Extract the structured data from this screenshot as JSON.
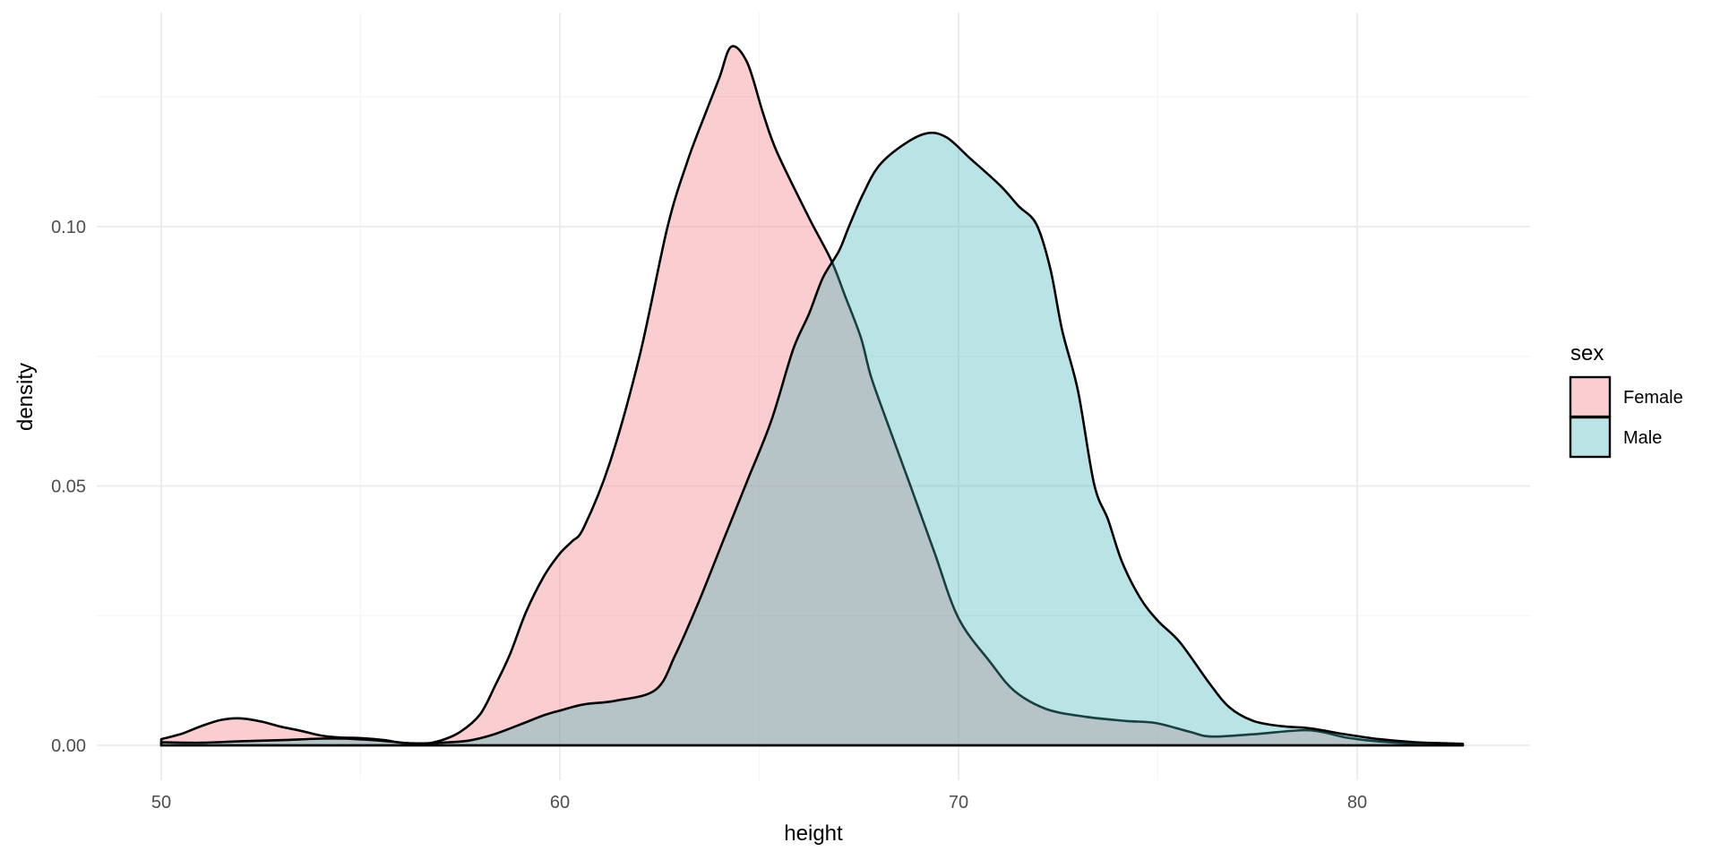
{
  "chart_data": {
    "type": "area",
    "subtype": "density",
    "title": "",
    "xlabel": "height",
    "ylabel": "density",
    "legend_title": "sex",
    "legend_position": "right",
    "grid": true,
    "background": "#ffffff",
    "gridline_major_color": "#ebebeb",
    "gridline_minor_color": "#f5f5f5",
    "outline_color": "#000000",
    "x_ticks": [
      50,
      60,
      70,
      80
    ],
    "x_tick_labels": [
      "50",
      "60",
      "70",
      "80"
    ],
    "x_minor_ticks": [
      55,
      65,
      75
    ],
    "y_ticks": [
      0,
      0.05,
      0.1
    ],
    "y_tick_labels": [
      "0.00",
      "0.05",
      "0.10"
    ],
    "y_minor_ticks": [
      0.025,
      0.075,
      0.125
    ],
    "xlim": [
      48.4,
      84.3
    ],
    "ylim": [
      -0.007,
      0.141
    ],
    "series": [
      {
        "name": "Female",
        "fill": "rgba(244,144,151,0.45)",
        "stroke": "#000000",
        "points": [
          [
            50,
            0.0012
          ],
          [
            50.5,
            0.0022
          ],
          [
            51,
            0.0037
          ],
          [
            51.5,
            0.0049
          ],
          [
            52,
            0.0052
          ],
          [
            52.5,
            0.0046
          ],
          [
            53,
            0.0036
          ],
          [
            53.5,
            0.0028
          ],
          [
            54,
            0.0019
          ],
          [
            54.5,
            0.0015
          ],
          [
            55,
            0.0014
          ],
          [
            55.6,
            0.001
          ],
          [
            56,
            0.0005
          ],
          [
            56.5,
            0.0002
          ],
          [
            57,
            0.0009
          ],
          [
            57.5,
            0.0026
          ],
          [
            58,
            0.006
          ],
          [
            58.4,
            0.0119
          ],
          [
            58.75,
            0.0176
          ],
          [
            59.15,
            0.0257
          ],
          [
            59.6,
            0.0326
          ],
          [
            60,
            0.037
          ],
          [
            60.3,
            0.0393
          ],
          [
            60.6,
            0.042
          ],
          [
            61.25,
            0.0544
          ],
          [
            62,
            0.0751
          ],
          [
            62.7,
            0.1
          ],
          [
            63.2,
            0.1126
          ],
          [
            63.65,
            0.1218
          ],
          [
            64,
            0.1287
          ],
          [
            64.3,
            0.1347
          ],
          [
            64.7,
            0.1316
          ],
          [
            65.1,
            0.1218
          ],
          [
            65.45,
            0.1143
          ],
          [
            66.25,
            0.1017
          ],
          [
            66.8,
            0.0936
          ],
          [
            67.15,
            0.0867
          ],
          [
            67.55,
            0.0786
          ],
          [
            67.8,
            0.0712
          ],
          [
            68.2,
            0.0625
          ],
          [
            68.8,
            0.0499
          ],
          [
            69.4,
            0.0371
          ],
          [
            70,
            0.0245
          ],
          [
            70.8,
            0.016
          ],
          [
            71.4,
            0.0105
          ],
          [
            72.2,
            0.007
          ],
          [
            73.2,
            0.0055
          ],
          [
            74.2,
            0.0047
          ],
          [
            74.95,
            0.0043
          ],
          [
            75.8,
            0.0026
          ],
          [
            76.35,
            0.0017
          ],
          [
            77.5,
            0.0022
          ],
          [
            78.8,
            0.0029
          ],
          [
            79.8,
            0.0014
          ],
          [
            80.8,
            0.0006
          ],
          [
            81.8,
            0.0003
          ],
          [
            82.65,
            0.0002
          ]
        ]
      },
      {
        "name": "Male",
        "fill": "rgba(60,178,183,0.36)",
        "stroke": "#000000",
        "points": [
          [
            50,
            0.0006
          ],
          [
            51,
            0.0005
          ],
          [
            52,
            0.0008
          ],
          [
            53,
            0.001
          ],
          [
            54,
            0.0013
          ],
          [
            54.6,
            0.0013
          ],
          [
            55.5,
            0.0009
          ],
          [
            56.3,
            0.0004
          ],
          [
            57,
            0.0005
          ],
          [
            57.7,
            0.0009
          ],
          [
            58.3,
            0.002
          ],
          [
            59,
            0.004
          ],
          [
            59.6,
            0.0058
          ],
          [
            60,
            0.0067
          ],
          [
            60.6,
            0.0079
          ],
          [
            61.4,
            0.0086
          ],
          [
            62.4,
            0.0107
          ],
          [
            62.9,
            0.0175
          ],
          [
            63.5,
            0.028
          ],
          [
            64.1,
            0.0395
          ],
          [
            64.7,
            0.051
          ],
          [
            65.3,
            0.0625
          ],
          [
            65.85,
            0.0763
          ],
          [
            66.25,
            0.0832
          ],
          [
            66.6,
            0.0902
          ],
          [
            67,
            0.0953
          ],
          [
            67.25,
            0.1
          ],
          [
            67.6,
            0.1062
          ],
          [
            68,
            0.1117
          ],
          [
            68.6,
            0.1157
          ],
          [
            69.2,
            0.118
          ],
          [
            69.7,
            0.1172
          ],
          [
            70.3,
            0.1131
          ],
          [
            71.05,
            0.1079
          ],
          [
            71.5,
            0.104
          ],
          [
            71.95,
            0.1005
          ],
          [
            72.3,
            0.092
          ],
          [
            72.6,
            0.08
          ],
          [
            73,
            0.0682
          ],
          [
            73.4,
            0.0504
          ],
          [
            73.75,
            0.0435
          ],
          [
            74.1,
            0.0354
          ],
          [
            74.55,
            0.0285
          ],
          [
            75,
            0.024
          ],
          [
            75.55,
            0.0199
          ],
          [
            76.3,
            0.0119
          ],
          [
            76.8,
            0.0073
          ],
          [
            77.4,
            0.0047
          ],
          [
            78.1,
            0.0037
          ],
          [
            78.8,
            0.0033
          ],
          [
            79.65,
            0.0022
          ],
          [
            80.55,
            0.0012
          ],
          [
            81.45,
            0.0006
          ],
          [
            82.2,
            0.0004
          ],
          [
            82.65,
            0.0003
          ]
        ]
      }
    ],
    "legend": [
      {
        "label": "Female",
        "swatch_fill": "rgba(244,144,151,0.45)",
        "swatch_stroke": "#000000"
      },
      {
        "label": "Male",
        "swatch_fill": "rgba(60,178,183,0.36)",
        "swatch_stroke": "#000000"
      }
    ]
  }
}
